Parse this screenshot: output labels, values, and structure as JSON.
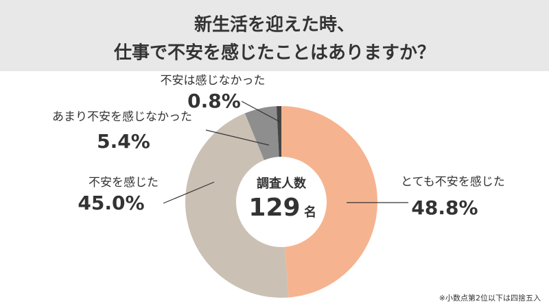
{
  "chart_data": {
    "type": "donut",
    "title_lines": [
      "新生活を迎えた時、",
      "仕事で不安を感じたことはありますか？"
    ],
    "categories": [
      "とても不安を感じた",
      "不安を感じた",
      "あまり不安を感じなかった",
      "不安は感じなかった"
    ],
    "values": [
      48.8,
      45.0,
      5.4,
      0.8
    ],
    "value_labels": [
      "48.8%",
      "45.0%",
      "5.4%",
      "0.8%"
    ],
    "colors": [
      "#f5b48f",
      "#cbc0b4",
      "#8e8e8e",
      "#444444"
    ],
    "center_label": "調査人数",
    "total": 129,
    "total_unit": "名",
    "footnote": "※小数点第2位以下は四捨五入"
  }
}
